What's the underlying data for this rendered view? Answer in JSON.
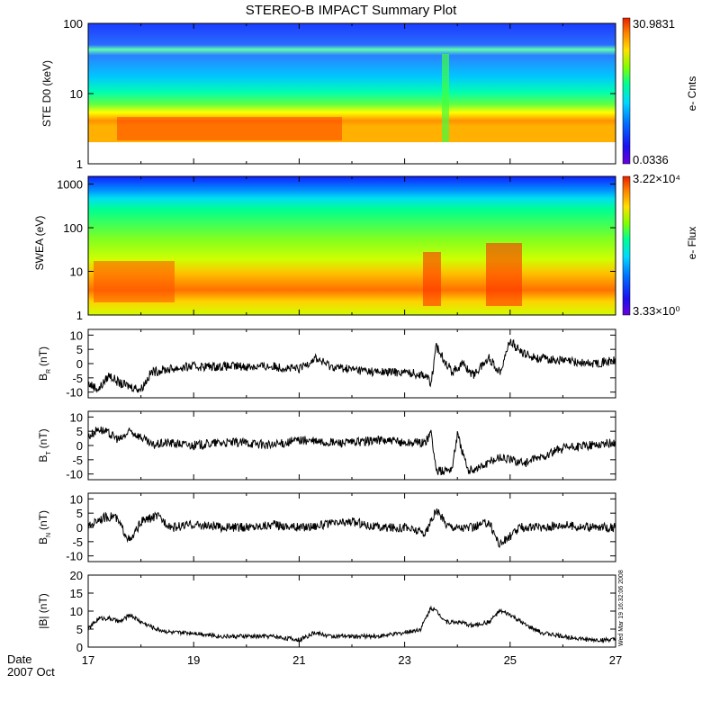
{
  "title": "STEREO-B IMPACT Summary Plot",
  "footer": {
    "date_label": "Date",
    "date_value": "2007 Oct",
    "timestamp": "Wed Mar 19 16:32:06 2008"
  },
  "colors": {
    "trace": "#000000",
    "axis": "#000000",
    "colormap": [
      "#6a00d8",
      "#1a10f0",
      "#0070ff",
      "#00d8ff",
      "#00ff90",
      "#80ff00",
      "#ffe000",
      "#ff8000",
      "#e82000"
    ]
  },
  "chart_data": [
    {
      "type": "heatmap",
      "panel": "ste",
      "ylabel": "STE D0 (keV)",
      "yscale": "log",
      "ylim": [
        1,
        100
      ],
      "yticks": [
        "1",
        "10",
        "100"
      ],
      "xlim": [
        17,
        27
      ],
      "colorbar": {
        "label": "e- Cnts",
        "max": "30.9831",
        "min": "0.0336"
      }
    },
    {
      "type": "heatmap",
      "panel": "swea",
      "ylabel": "SWEA (eV)",
      "yscale": "log",
      "ylim": [
        1,
        1500
      ],
      "yticks": [
        "1",
        "10",
        "100",
        "1000"
      ],
      "xlim": [
        17,
        27
      ],
      "colorbar": {
        "label": "e- Flux",
        "max": "3.22×10⁴",
        "min": "3.33×10⁰"
      }
    },
    {
      "type": "line",
      "panel": "br",
      "ylabel": "B",
      "ylabel_sub": "R",
      "ylabel_unit": "(nT)",
      "ylim": [
        -12,
        12
      ],
      "yticks": [
        "10",
        "5",
        "0",
        "-5",
        "-10"
      ],
      "xlim": [
        17,
        27
      ],
      "x": [
        17.0,
        17.2,
        17.4,
        17.6,
        17.8,
        18.0,
        18.2,
        18.5,
        19.0,
        19.5,
        20.0,
        20.5,
        21.0,
        21.3,
        21.6,
        22.0,
        22.5,
        23.0,
        23.4,
        23.5,
        23.6,
        23.7,
        23.9,
        24.1,
        24.3,
        24.6,
        24.8,
        25.0,
        25.2,
        25.5,
        26.0,
        26.5,
        27.0
      ],
      "values": [
        -7,
        -9,
        -4,
        -7,
        -8,
        -9,
        -3,
        -2,
        -1,
        -1,
        -1,
        -1,
        -2,
        2,
        -1,
        -2,
        -3,
        -3,
        -4,
        -7,
        6,
        3,
        -3,
        0,
        -4,
        2,
        -3,
        8,
        4,
        2,
        1,
        0,
        1
      ]
    },
    {
      "type": "line",
      "panel": "bt",
      "ylabel": "B",
      "ylabel_sub": "T",
      "ylabel_unit": "(nT)",
      "ylim": [
        -12,
        12
      ],
      "yticks": [
        "10",
        "5",
        "0",
        "-5",
        "-10"
      ],
      "xlim": [
        17,
        27
      ],
      "x": [
        17.0,
        17.2,
        17.4,
        17.6,
        17.8,
        18.0,
        18.2,
        18.5,
        19.0,
        19.5,
        20.0,
        20.5,
        21.0,
        21.5,
        22.0,
        22.5,
        23.0,
        23.4,
        23.5,
        23.6,
        23.7,
        23.9,
        24.0,
        24.2,
        24.5,
        24.8,
        25.0,
        25.3,
        25.6,
        26.0,
        26.5,
        27.0
      ],
      "values": [
        3,
        6,
        4,
        2,
        5,
        3,
        0,
        1,
        0,
        1,
        1,
        0,
        2,
        1,
        1,
        2,
        1,
        1,
        5,
        -9,
        -9,
        -8,
        4,
        -9,
        -7,
        -4,
        -5,
        -6,
        -4,
        -1,
        0,
        1
      ]
    },
    {
      "type": "line",
      "panel": "bn",
      "ylabel": "B",
      "ylabel_sub": "N",
      "ylabel_unit": "(nT)",
      "ylim": [
        -12,
        12
      ],
      "yticks": [
        "10",
        "5",
        "0",
        "-5",
        "-10"
      ],
      "xlim": [
        17,
        27
      ],
      "x": [
        17.0,
        17.2,
        17.5,
        17.8,
        18.0,
        18.3,
        18.6,
        19.0,
        19.5,
        20.0,
        20.5,
        21.0,
        21.5,
        22.0,
        22.5,
        23.0,
        23.4,
        23.6,
        23.8,
        24.0,
        24.3,
        24.6,
        24.8,
        25.0,
        25.2,
        25.6,
        26.0,
        26.5,
        27.0
      ],
      "values": [
        0,
        3,
        4,
        -5,
        2,
        4,
        0,
        1,
        0,
        0,
        1,
        0,
        1,
        2,
        0,
        0,
        -2,
        6,
        1,
        0,
        0,
        2,
        -6,
        -3,
        0,
        0,
        1,
        0,
        0
      ]
    },
    {
      "type": "line",
      "panel": "bmag",
      "ylabel": "|B| (nT)",
      "ylim": [
        0,
        20
      ],
      "yticks": [
        "20",
        "15",
        "10",
        "5",
        "0"
      ],
      "xlim": [
        17,
        27
      ],
      "xticks": [
        "17",
        "19",
        "21",
        "23",
        "25",
        "27"
      ],
      "x": [
        17.0,
        17.2,
        17.4,
        17.6,
        17.8,
        18.0,
        18.3,
        18.6,
        19.0,
        19.5,
        20.0,
        20.5,
        21.0,
        21.3,
        21.6,
        22.0,
        22.5,
        23.0,
        23.3,
        23.5,
        23.6,
        23.8,
        24.0,
        24.3,
        24.6,
        24.8,
        25.0,
        25.3,
        25.6,
        26.0,
        26.5,
        27.0
      ],
      "values": [
        5,
        8,
        8,
        7,
        9,
        7,
        5,
        4,
        4,
        3,
        3,
        3,
        2,
        4,
        3,
        3,
        3,
        4,
        5,
        11,
        10,
        7,
        7,
        6,
        7,
        10,
        9,
        6,
        4,
        3,
        2,
        2
      ]
    }
  ]
}
